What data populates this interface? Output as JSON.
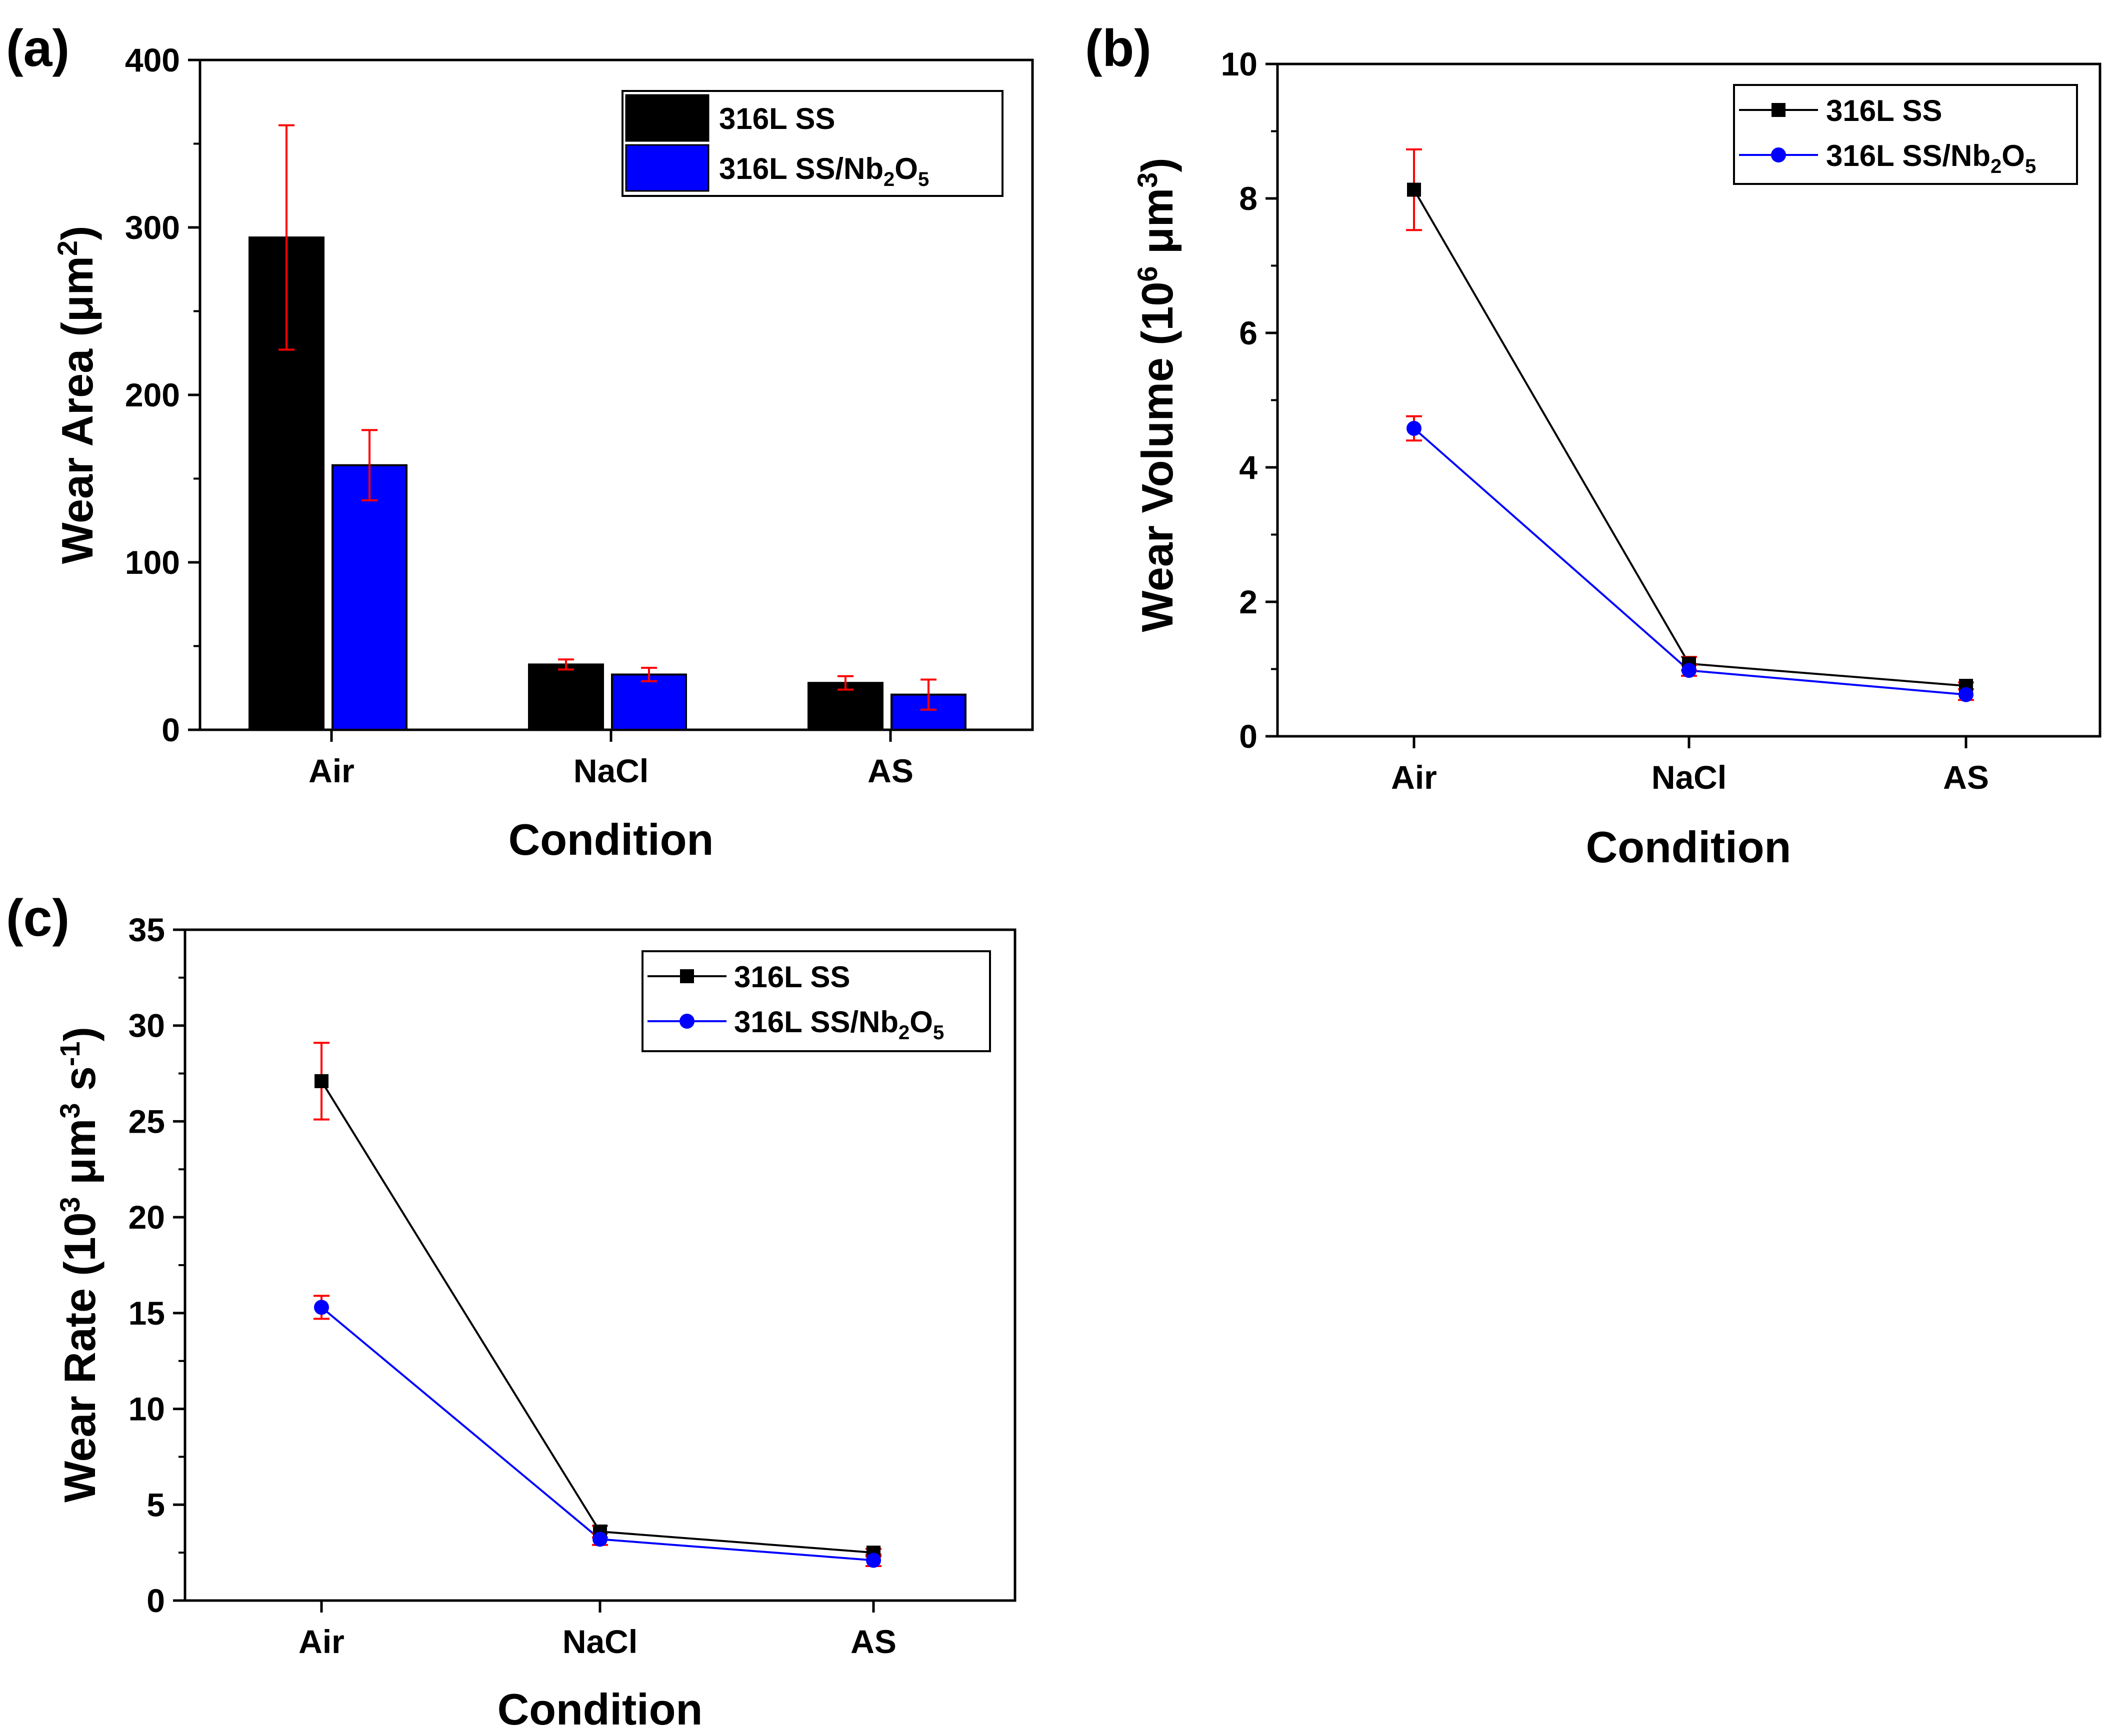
{
  "chart_data": [
    {
      "panel": "(a)",
      "type": "bar",
      "categories": [
        "Air",
        "NaCl",
        "AS"
      ],
      "xlabel": "Condition",
      "ylabel": "Wear Area (μm²)",
      "ylabel_parts": {
        "main": "Wear Area (μm",
        "sup": "2",
        "end": ")"
      },
      "ylim": [
        0,
        400
      ],
      "yticks": [
        "0",
        "100",
        "200",
        "300",
        "400"
      ],
      "legend_position": "top-right",
      "series": [
        {
          "name": "316L SS",
          "name_main": "316L SS",
          "color": "#000000",
          "values": [
            294,
            39,
            28
          ],
          "errors": [
            67,
            3,
            4
          ]
        },
        {
          "name": "316L SS/Nb2O5",
          "name_main": "316L SS/Nb",
          "name_sub1": "2",
          "name_mid": "O",
          "name_sub2": "5",
          "color": "#0000ff",
          "values": [
            158,
            33,
            21
          ],
          "errors": [
            21,
            4,
            9
          ]
        }
      ],
      "error_color": "#ff0000"
    },
    {
      "panel": "(b)",
      "type": "line",
      "categories": [
        "Air",
        "NaCl",
        "AS"
      ],
      "xlabel": "Condition",
      "ylabel": "Wear Volume (10⁶ μm³)",
      "ylabel_parts": {
        "main": "Wear Volume (10",
        "sup1": "6",
        "mid": " μm",
        "sup2": "3",
        "end": ")"
      },
      "ylim": [
        0,
        10
      ],
      "yticks": [
        "0",
        "2",
        "4",
        "6",
        "8",
        "10"
      ],
      "legend_position": "top-right",
      "series": [
        {
          "name": "316L SS",
          "name_main": "316L SS",
          "color": "#000000",
          "marker": "square",
          "values": [
            8.13,
            1.08,
            0.75
          ],
          "errors": [
            0.6,
            0.1,
            0.05
          ]
        },
        {
          "name": "316L SS/Nb2O5",
          "name_main": "316L SS/Nb",
          "name_sub1": "2",
          "name_mid": "O",
          "name_sub2": "5",
          "color": "#0000ff",
          "marker": "circle",
          "values": [
            4.58,
            0.98,
            0.62
          ],
          "errors": [
            0.18,
            0.08,
            0.08
          ]
        }
      ],
      "error_color": "#ff0000"
    },
    {
      "panel": "(c)",
      "type": "line",
      "categories": [
        "Air",
        "NaCl",
        "AS"
      ],
      "xlabel": "Condition",
      "ylabel": "Wear Rate (10³ μm³ s⁻¹)",
      "ylabel_parts": {
        "main": "Wear Rate (10",
        "sup1": "3",
        "mid": " μm",
        "sup2": "3",
        "mid2": " s",
        "sup3": "-1",
        "end": ")"
      },
      "ylim": [
        0,
        35
      ],
      "yticks": [
        "0",
        "5",
        "10",
        "15",
        "20",
        "25",
        "30",
        "35"
      ],
      "legend_position": "top-right",
      "series": [
        {
          "name": "316L SS",
          "name_main": "316L SS",
          "color": "#000000",
          "marker": "square",
          "values": [
            27.1,
            3.6,
            2.5
          ],
          "errors": [
            2.0,
            0.3,
            0.2
          ]
        },
        {
          "name": "316L SS/Nb2O5",
          "name_main": "316L SS/Nb",
          "name_sub1": "2",
          "name_mid": "O",
          "name_sub2": "5",
          "color": "#0000ff",
          "marker": "circle",
          "values": [
            15.3,
            3.2,
            2.1
          ],
          "errors": [
            0.6,
            0.3,
            0.3
          ]
        }
      ],
      "error_color": "#ff0000"
    }
  ]
}
